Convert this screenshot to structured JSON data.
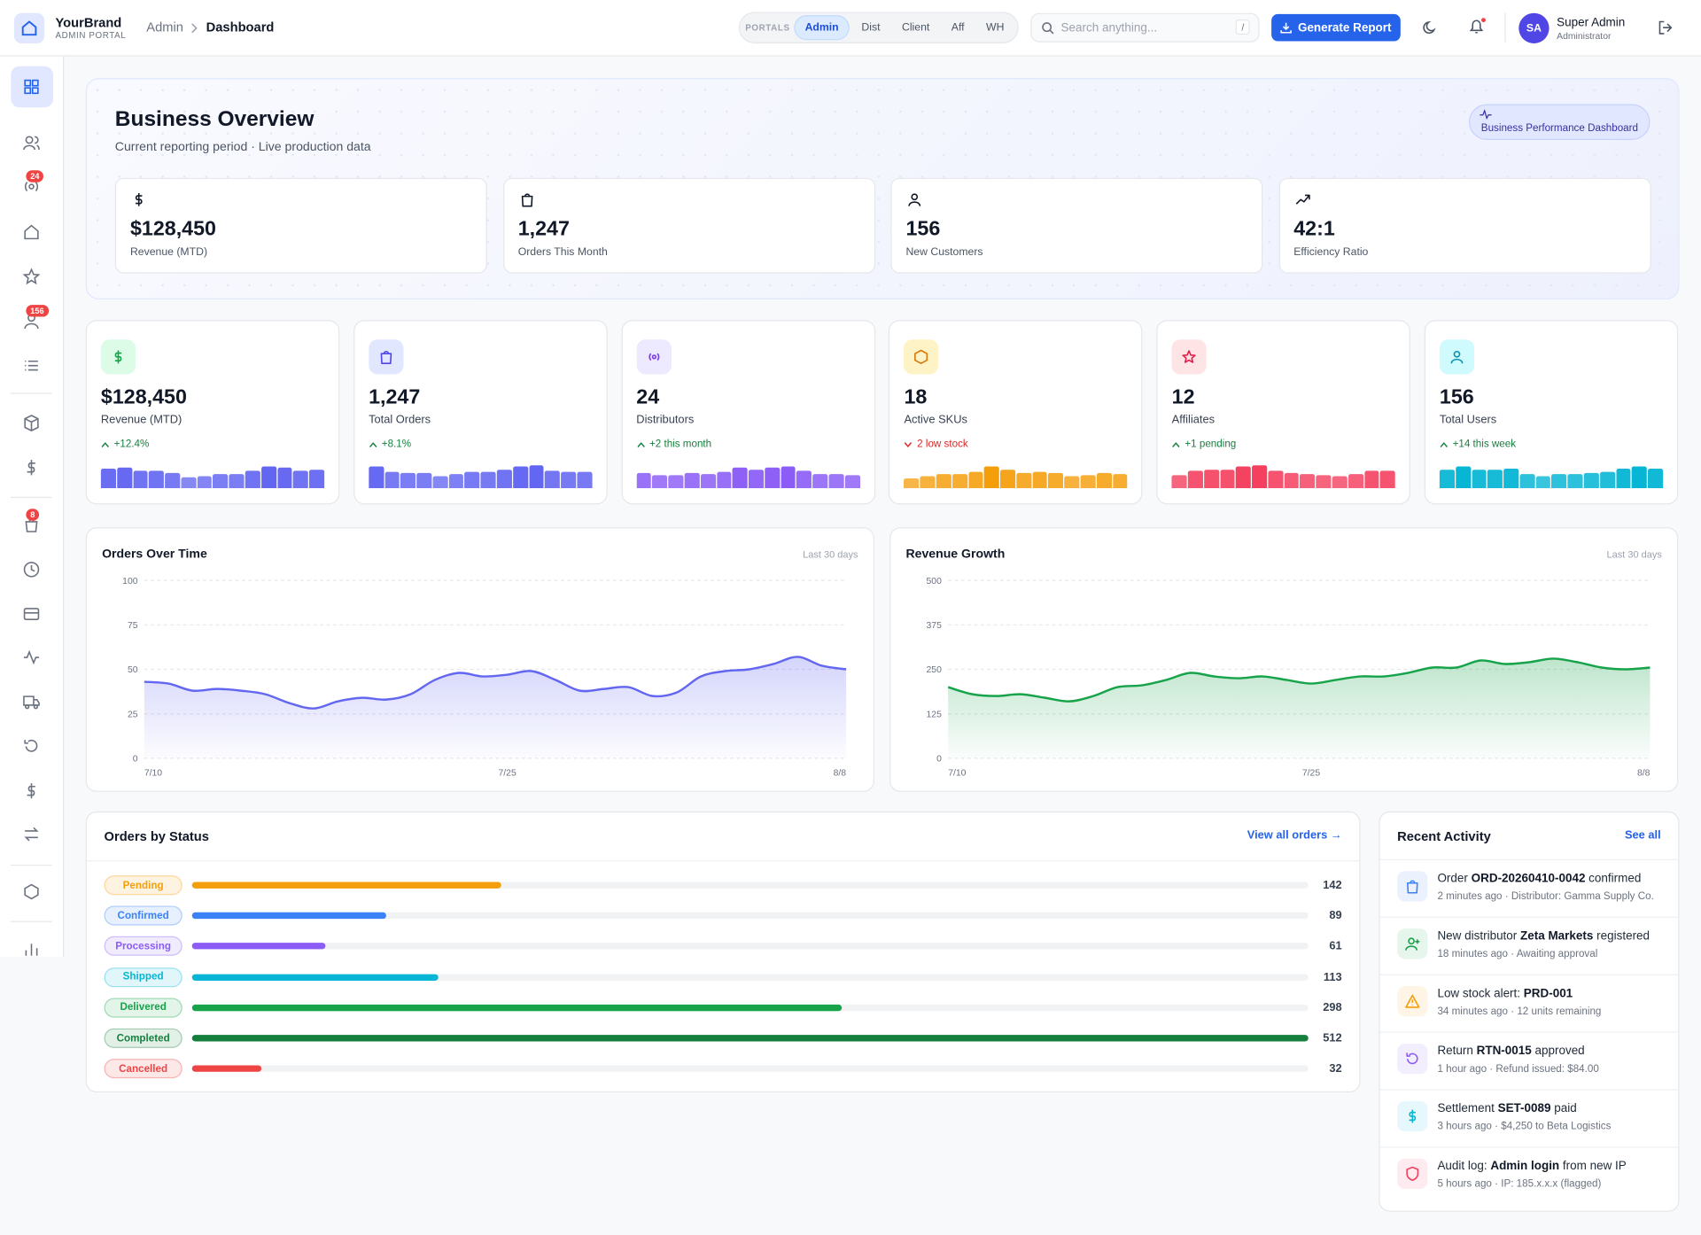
{
  "header": {
    "brand": "YourBrand",
    "brand_sub": "ADMIN PORTAL",
    "breadcrumb": [
      "Admin",
      "Dashboard"
    ],
    "portals_label": "PORTALS",
    "portals": [
      "Admin",
      "Dist",
      "Client",
      "Aff",
      "WH"
    ],
    "search_placeholder": "Search anything...",
    "search_shortcut": "/",
    "action": "Generate Report",
    "user": {
      "initials": "SA",
      "name": "Super Admin",
      "role": "Administrator"
    }
  },
  "sidebar_badges": [
    24,
    156,
    8
  ],
  "overview": {
    "title": "Business Overview",
    "subtitle": "Current reporting period · Live production data",
    "tag": "Business Performance Dashboard",
    "kpis": [
      {
        "value": "$128,450",
        "label": "Revenue (MTD)"
      },
      {
        "value": "1,247",
        "label": "Orders This Month"
      },
      {
        "value": "156",
        "label": "New Customers"
      },
      {
        "value": "42:1",
        "label": "Efficiency Ratio"
      }
    ]
  },
  "stats": [
    {
      "value": "$128,450",
      "label": "Revenue (MTD)",
      "delta": "+12.4%",
      "trend": "up",
      "color": "#6366f1",
      "sparkline": [
        18,
        19,
        16,
        16,
        14,
        10,
        11,
        13,
        13,
        16,
        20,
        19,
        16,
        17
      ]
    },
    {
      "value": "1,247",
      "label": "Total Orders",
      "delta": "+8.1%",
      "trend": "up",
      "color": "#6366f1",
      "sparkline": [
        20,
        15,
        14,
        14,
        11,
        13,
        15,
        15,
        17,
        20,
        21,
        16,
        15,
        15
      ]
    },
    {
      "value": "24",
      "label": "Distributors",
      "delta": "+2 this month",
      "trend": "up",
      "color": "#8b5cf6",
      "sparkline": [
        14,
        12,
        12,
        14,
        13,
        15,
        19,
        17,
        19,
        20,
        16,
        13,
        13,
        12
      ]
    },
    {
      "value": "18",
      "label": "Active SKUs",
      "delta": "2 low stock",
      "trend": "down",
      "color": "#f59e0b",
      "sparkline": [
        9,
        11,
        13,
        13,
        15,
        20,
        17,
        14,
        15,
        14,
        11,
        12,
        14,
        13
      ]
    },
    {
      "value": "12",
      "label": "Affiliates",
      "delta": "+1 pending",
      "trend": "up",
      "color": "#f43f5e",
      "sparkline": [
        12,
        16,
        17,
        17,
        20,
        21,
        16,
        14,
        13,
        12,
        11,
        13,
        16,
        16
      ]
    },
    {
      "value": "156",
      "label": "Total Users",
      "delta": "+14 this week",
      "trend": "up",
      "color": "#06b6d4",
      "sparkline": [
        17,
        20,
        17,
        17,
        18,
        13,
        11,
        13,
        13,
        14,
        15,
        18,
        20,
        18
      ]
    }
  ],
  "chart_data": [
    {
      "type": "line",
      "title": "Orders Over Time",
      "subtitle": "Last 30 days",
      "color": "#6366f1",
      "grid": true,
      "categories": [
        "7/10",
        null,
        null,
        null,
        null,
        null,
        null,
        null,
        null,
        null,
        null,
        null,
        null,
        null,
        null,
        "7/25",
        null,
        null,
        null,
        null,
        null,
        null,
        null,
        null,
        null,
        null,
        null,
        null,
        null,
        "8/8"
      ],
      "values": [
        43,
        42,
        38,
        39,
        38,
        36,
        31,
        28,
        32,
        34,
        33,
        36,
        44,
        48,
        46,
        47,
        49,
        44,
        38,
        39,
        40,
        35,
        37,
        46,
        49,
        50,
        53,
        57,
        52,
        50
      ],
      "ylim": [
        0,
        100
      ],
      "yticks": [
        0,
        25,
        50,
        75,
        100
      ]
    },
    {
      "type": "line",
      "title": "Revenue Growth",
      "subtitle": "Last 30 days",
      "color": "#16a34a",
      "grid": true,
      "categories": [
        "7/10",
        null,
        null,
        null,
        null,
        null,
        null,
        null,
        null,
        null,
        null,
        null,
        null,
        null,
        null,
        "7/25",
        null,
        null,
        null,
        null,
        null,
        null,
        null,
        null,
        null,
        null,
        null,
        null,
        null,
        "8/8"
      ],
      "values": [
        200,
        180,
        175,
        180,
        170,
        160,
        175,
        200,
        205,
        220,
        240,
        230,
        225,
        230,
        220,
        210,
        220,
        230,
        230,
        240,
        255,
        255,
        275,
        265,
        270,
        280,
        270,
        255,
        250,
        255
      ],
      "ylim": [
        0,
        500
      ],
      "yticks": [
        0,
        125,
        250,
        375,
        500
      ]
    },
    {
      "type": "bar",
      "orientation": "horizontal",
      "title": "Orders by Status",
      "link": "View all orders →",
      "categories": [
        "Pending",
        "Confirmed",
        "Processing",
        "Shipped",
        "Delivered",
        "Completed",
        "Cancelled"
      ],
      "values": [
        142,
        89,
        61,
        113,
        298,
        512,
        32
      ],
      "colors": [
        "#f59e0b",
        "#3b82f6",
        "#8b5cf6",
        "#06b6d4",
        "#16a34a",
        "#15803d",
        "#ef4444"
      ],
      "xlim": [
        0,
        512
      ]
    }
  ],
  "activity": {
    "title": "Recent Activity",
    "link": "See all",
    "items": [
      {
        "parts": [
          {
            "text": "Order "
          },
          {
            "text": "ORD-20260410-0042",
            "bold": true
          },
          {
            "text": " confirmed"
          }
        ],
        "meta": "2 minutes ago · Distributor: Gamma Supply Co.",
        "color": "#3b82f6"
      },
      {
        "parts": [
          {
            "text": "New distributor "
          },
          {
            "text": "Zeta Markets",
            "bold": true
          },
          {
            "text": " registered"
          }
        ],
        "meta": "18 minutes ago · Awaiting approval",
        "color": "#16a34a"
      },
      {
        "parts": [
          {
            "text": "Low stock alert: "
          },
          {
            "text": "PRD-001",
            "bold": true
          }
        ],
        "meta": "34 minutes ago · 12 units remaining",
        "color": "#f59e0b"
      },
      {
        "parts": [
          {
            "text": "Return "
          },
          {
            "text": "RTN-0015",
            "bold": true
          },
          {
            "text": " approved"
          }
        ],
        "meta": "1 hour ago · Refund issued: $84.00",
        "color": "#8b5cf6"
      },
      {
        "parts": [
          {
            "text": "Settlement "
          },
          {
            "text": "SET-0089",
            "bold": true
          },
          {
            "text": " paid"
          }
        ],
        "meta": "3 hours ago · $4,250 to Beta Logistics",
        "color": "#06b6d4"
      },
      {
        "parts": [
          {
            "text": "Audit log: "
          },
          {
            "text": "Admin login",
            "bold": true
          },
          {
            "text": " from new IP"
          }
        ],
        "meta": "5 hours ago · IP: 185.x.x.x (flagged)",
        "color": "#f43f5e"
      }
    ]
  }
}
